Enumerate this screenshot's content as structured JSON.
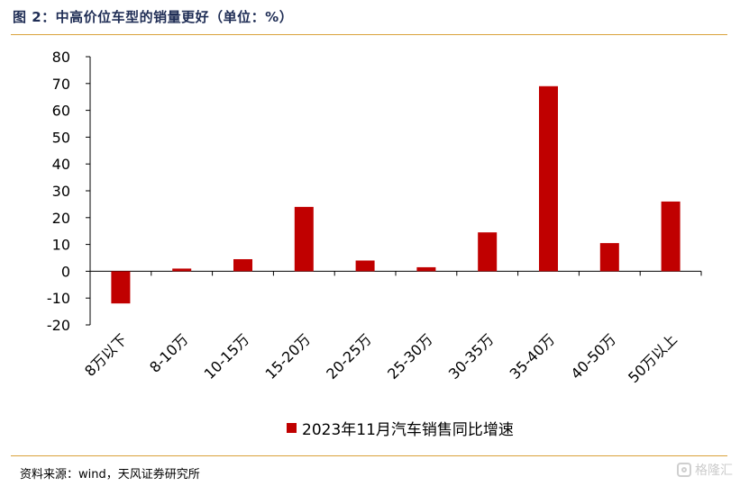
{
  "header": {
    "title": "图 2：中高价位车型的销量更好（单位：%）"
  },
  "footer": {
    "source": "资料来源：wind，天风证券研究所",
    "watermark": "格隆汇",
    "watermark_icon": "gelonghui-logo-icon"
  },
  "colors": {
    "bar": "#c00000",
    "rule": "#d9a23a",
    "title": "#1f2d55"
  },
  "chart_data": {
    "type": "bar",
    "categories": [
      "8万以下",
      "8-10万",
      "10-15万",
      "15-20万",
      "20-25万",
      "25-30万",
      "30-35万",
      "35-40万",
      "40-50万",
      "50万以上"
    ],
    "series": [
      {
        "name": "2023年11月汽车销售同比增速",
        "values": [
          -12,
          1,
          4.5,
          24,
          4,
          1.5,
          14.5,
          69,
          10.5,
          26
        ]
      }
    ],
    "ylim": [
      -20,
      80
    ],
    "yticks": [
      -20,
      -10,
      0,
      10,
      20,
      30,
      40,
      50,
      60,
      70,
      80
    ],
    "grid": false,
    "legend_position": "bottom",
    "xlabel": "",
    "ylabel": ""
  }
}
